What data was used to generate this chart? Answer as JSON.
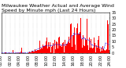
{
  "title": "Milwaukee Weather Actual and Average Wind Speed by Minute mph (Last 24 Hours)",
  "background_color": "#ffffff",
  "bar_color": "#ff0000",
  "line_color": "#0000ff",
  "grid_color": "#aaaaaa",
  "ylim": [
    0,
    35
  ],
  "n_points": 1440,
  "title_fontsize": 4.5,
  "tick_fontsize": 3.5,
  "yticks": [
    0,
    5,
    10,
    15,
    20,
    25,
    30,
    35
  ],
  "x_tick_interval": 60
}
